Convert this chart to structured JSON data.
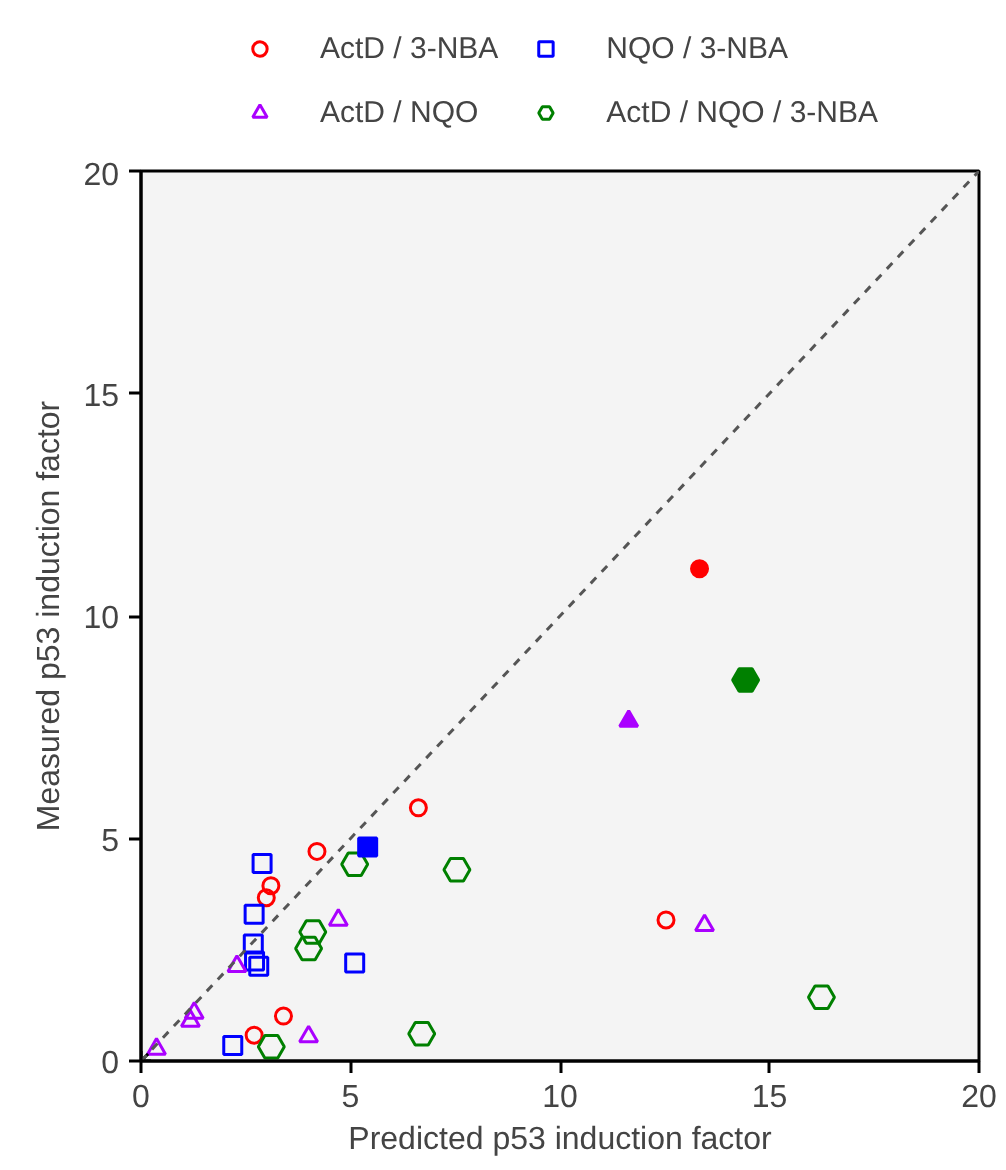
{
  "chart_data": {
    "type": "scatter",
    "xlabel": "Predicted p53 induction factor",
    "ylabel": "Measured p53 induction factor",
    "xlim": [
      0,
      20
    ],
    "ylim": [
      0,
      20
    ],
    "xticks": [
      0,
      5,
      10,
      15,
      20
    ],
    "yticks": [
      0,
      5,
      10,
      15,
      20
    ],
    "grid": false,
    "legend": "top",
    "series": [
      {
        "name": "ActD / 3-NBA",
        "color": "#ff0000",
        "marker": "circle",
        "x": [
          6.62,
          4.2,
          3.1,
          2.99,
          3.4,
          2.7,
          12.53
        ],
        "values": [
          5.69,
          4.71,
          3.94,
          3.67,
          1.01,
          0.58,
          3.17
        ]
      },
      {
        "name": "NQO / 3-NBA",
        "color": "#0000ff",
        "marker": "square",
        "x": [
          2.89,
          2.7,
          2.68,
          2.71,
          2.81,
          5.1,
          2.19
        ],
        "values": [
          4.44,
          3.3,
          2.63,
          2.25,
          2.13,
          2.2,
          0.35
        ]
      },
      {
        "name": "ActD / NQO",
        "color": "#aa00ff",
        "marker": "triangle",
        "x": [
          4.71,
          2.29,
          1.27,
          1.18,
          0.37,
          4.0,
          13.45
        ],
        "values": [
          3.17,
          2.13,
          1.08,
          0.9,
          0.27,
          0.55,
          3.05
        ]
      },
      {
        "name": "ActD / NQO / 3-NBA",
        "color": "#008000",
        "x": [
          5.1,
          7.54,
          4.1,
          4.0,
          6.7,
          3.11,
          16.24
        ],
        "values": [
          4.42,
          4.3,
          2.9,
          2.53,
          0.61,
          0.32,
          1.43
        ]
      },
      {
        "color": "#ff0000",
        "marker": "circle",
        "x": [
          13.33
        ],
        "values": [
          11.06
        ]
      },
      {
        "color": "#0000ff",
        "marker": "square",
        "x": [
          5.41
        ],
        "values": [
          4.81
        ]
      },
      {
        "color": "#aa00ff",
        "marker": "triangle",
        "x": [
          11.64
        ],
        "values": [
          7.64
        ]
      },
      {
        "color": "#008000",
        "x": [
          14.43
        ],
        "values": [
          8.56
        ]
      },
      {
        "color": "#000000",
        "marker": "cross",
        "x": [
          0
        ],
        "values": [
          0
        ]
      },
      {
        "type": "line",
        "color": "#555555",
        "line_style": "dashed",
        "x": [
          0,
          20
        ],
        "values": [
          0,
          20
        ]
      }
    ]
  }
}
